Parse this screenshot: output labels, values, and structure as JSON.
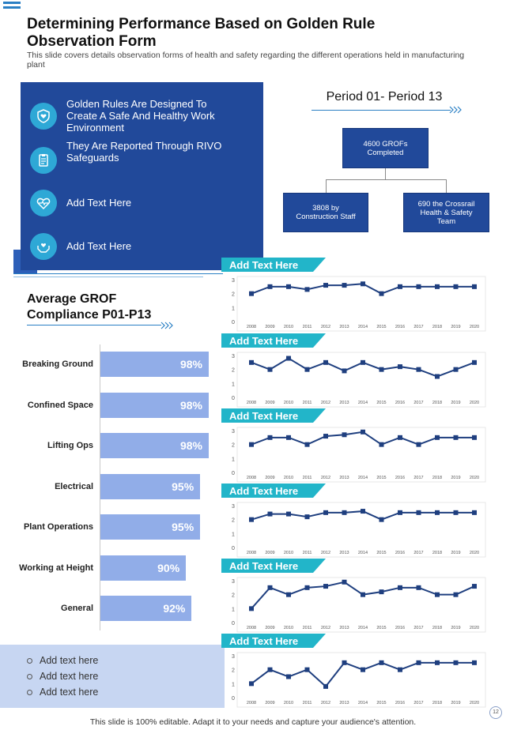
{
  "header": {
    "title": "Determining Performance Based on Golden Rule Observation Form",
    "subtitle": "This slide covers details observation forms of health and safety regarding the different operations held in manufacturing plant"
  },
  "panel": {
    "items": [
      {
        "icon": "shield-heart-icon",
        "text": "Golden Rules Are Designed To Create A Safe And Healthy Work Environment"
      },
      {
        "icon": "clipboard-icon",
        "text": "They Are Reported Through RIVO Safeguards"
      },
      {
        "icon": "heart-pulse-icon",
        "text": "Add Text Here"
      },
      {
        "icon": "hands-heart-icon",
        "text": "Add Text Here"
      }
    ]
  },
  "org": {
    "period_title": "Period 01- Period 13",
    "top": "4600 GROFs Completed",
    "left": "3808 by Construction Staff",
    "right": "690 the Crossrail Health & Safety Team"
  },
  "compliance": {
    "title": "Average GROF Compliance P01-P13",
    "bars": [
      {
        "label": "Breaking Ground",
        "value": 98,
        "display": "98%"
      },
      {
        "label": "Confined Space",
        "value": 98,
        "display": "98%"
      },
      {
        "label": "Lifting Ops",
        "value": 98,
        "display": "98%"
      },
      {
        "label": "Electrical",
        "value": 95,
        "display": "95%"
      },
      {
        "label": "Plant Operations",
        "value": 95,
        "display": "95%"
      },
      {
        "label": "Working at Height",
        "value": 90,
        "display": "90%"
      },
      {
        "label": "General",
        "value": 92,
        "display": "92%"
      }
    ]
  },
  "bottom_list": [
    "Add text here",
    "Add text here",
    "Add text here"
  ],
  "chart_data": [
    {
      "type": "line",
      "title": "Add Text Here",
      "x": [
        "2008",
        "2009",
        "2010",
        "2011",
        "2012",
        "2013",
        "2014",
        "2015",
        "2016",
        "2017",
        "2018",
        "2019",
        "2020"
      ],
      "values": [
        2,
        2.5,
        2.5,
        2.3,
        2.6,
        2.6,
        2.7,
        2,
        2.5,
        2.5,
        2.5,
        2.5,
        2.5
      ],
      "ylim": [
        0,
        3
      ],
      "yticks": [
        "0",
        "1",
        "2",
        "3"
      ]
    },
    {
      "type": "line",
      "title": "Add Text Here",
      "x": [
        "2008",
        "2009",
        "2010",
        "2011",
        "2012",
        "2013",
        "2014",
        "2015",
        "2016",
        "2017",
        "2018",
        "2019",
        "2020"
      ],
      "values": [
        2.5,
        2,
        2.8,
        2,
        2.5,
        1.9,
        2.5,
        2,
        2.2,
        2,
        1.5,
        2,
        2.5
      ],
      "ylim": [
        0,
        3
      ],
      "yticks": [
        "0",
        "1",
        "2",
        "3"
      ]
    },
    {
      "type": "line",
      "title": "Add Text Here",
      "x": [
        "2008",
        "2009",
        "2010",
        "2011",
        "2012",
        "2013",
        "2014",
        "2015",
        "2016",
        "2017",
        "2018",
        "2019",
        "2020"
      ],
      "values": [
        2,
        2.5,
        2.5,
        2,
        2.6,
        2.7,
        2.9,
        2,
        2.5,
        2,
        2.5,
        2.5,
        2.5
      ],
      "ylim": [
        0,
        3
      ],
      "yticks": [
        "0",
        "1",
        "2",
        "3"
      ]
    },
    {
      "type": "line",
      "title": "Add Text Here",
      "x": [
        "2008",
        "2009",
        "2010",
        "2011",
        "2012",
        "2013",
        "2014",
        "2015",
        "2016",
        "2017",
        "2018",
        "2019",
        "2020"
      ],
      "values": [
        2,
        2.4,
        2.4,
        2.2,
        2.5,
        2.5,
        2.6,
        2,
        2.5,
        2.5,
        2.5,
        2.5,
        2.5
      ],
      "ylim": [
        0,
        3
      ],
      "yticks": [
        "0",
        "1",
        "2",
        "3"
      ]
    },
    {
      "type": "line",
      "title": "Add Text Here",
      "x": [
        "2008",
        "2009",
        "2010",
        "2011",
        "2012",
        "2013",
        "2014",
        "2015",
        "2016",
        "2017",
        "2018",
        "2019",
        "2020"
      ],
      "values": [
        1,
        2.5,
        2,
        2.5,
        2.6,
        2.9,
        2,
        2.2,
        2.5,
        2.5,
        2,
        2,
        2.6
      ],
      "ylim": [
        0,
        3
      ],
      "yticks": [
        "0",
        "1",
        "2",
        "3"
      ]
    },
    {
      "type": "line",
      "title": "Add Text Here",
      "x": [
        "2008",
        "2009",
        "2010",
        "2011",
        "2012",
        "2013",
        "2014",
        "2015",
        "2016",
        "2017",
        "2018",
        "2019",
        "2020"
      ],
      "values": [
        1,
        2,
        1.5,
        2,
        0.8,
        2.5,
        2,
        2.5,
        2,
        2.5,
        2.5,
        2.5,
        2.5
      ],
      "ylim": [
        0,
        3
      ],
      "yticks": [
        "0",
        "1",
        "2",
        "3"
      ]
    }
  ],
  "footer": {
    "text": "This slide is 100% editable. Adapt it to your needs and capture your audience's attention.",
    "page": "12"
  },
  "colors": {
    "navy": "#21499a",
    "teal": "#2ea8d6",
    "tab": "#22b5c9",
    "bar": "#91ade8",
    "line": "#1f3f7f"
  }
}
